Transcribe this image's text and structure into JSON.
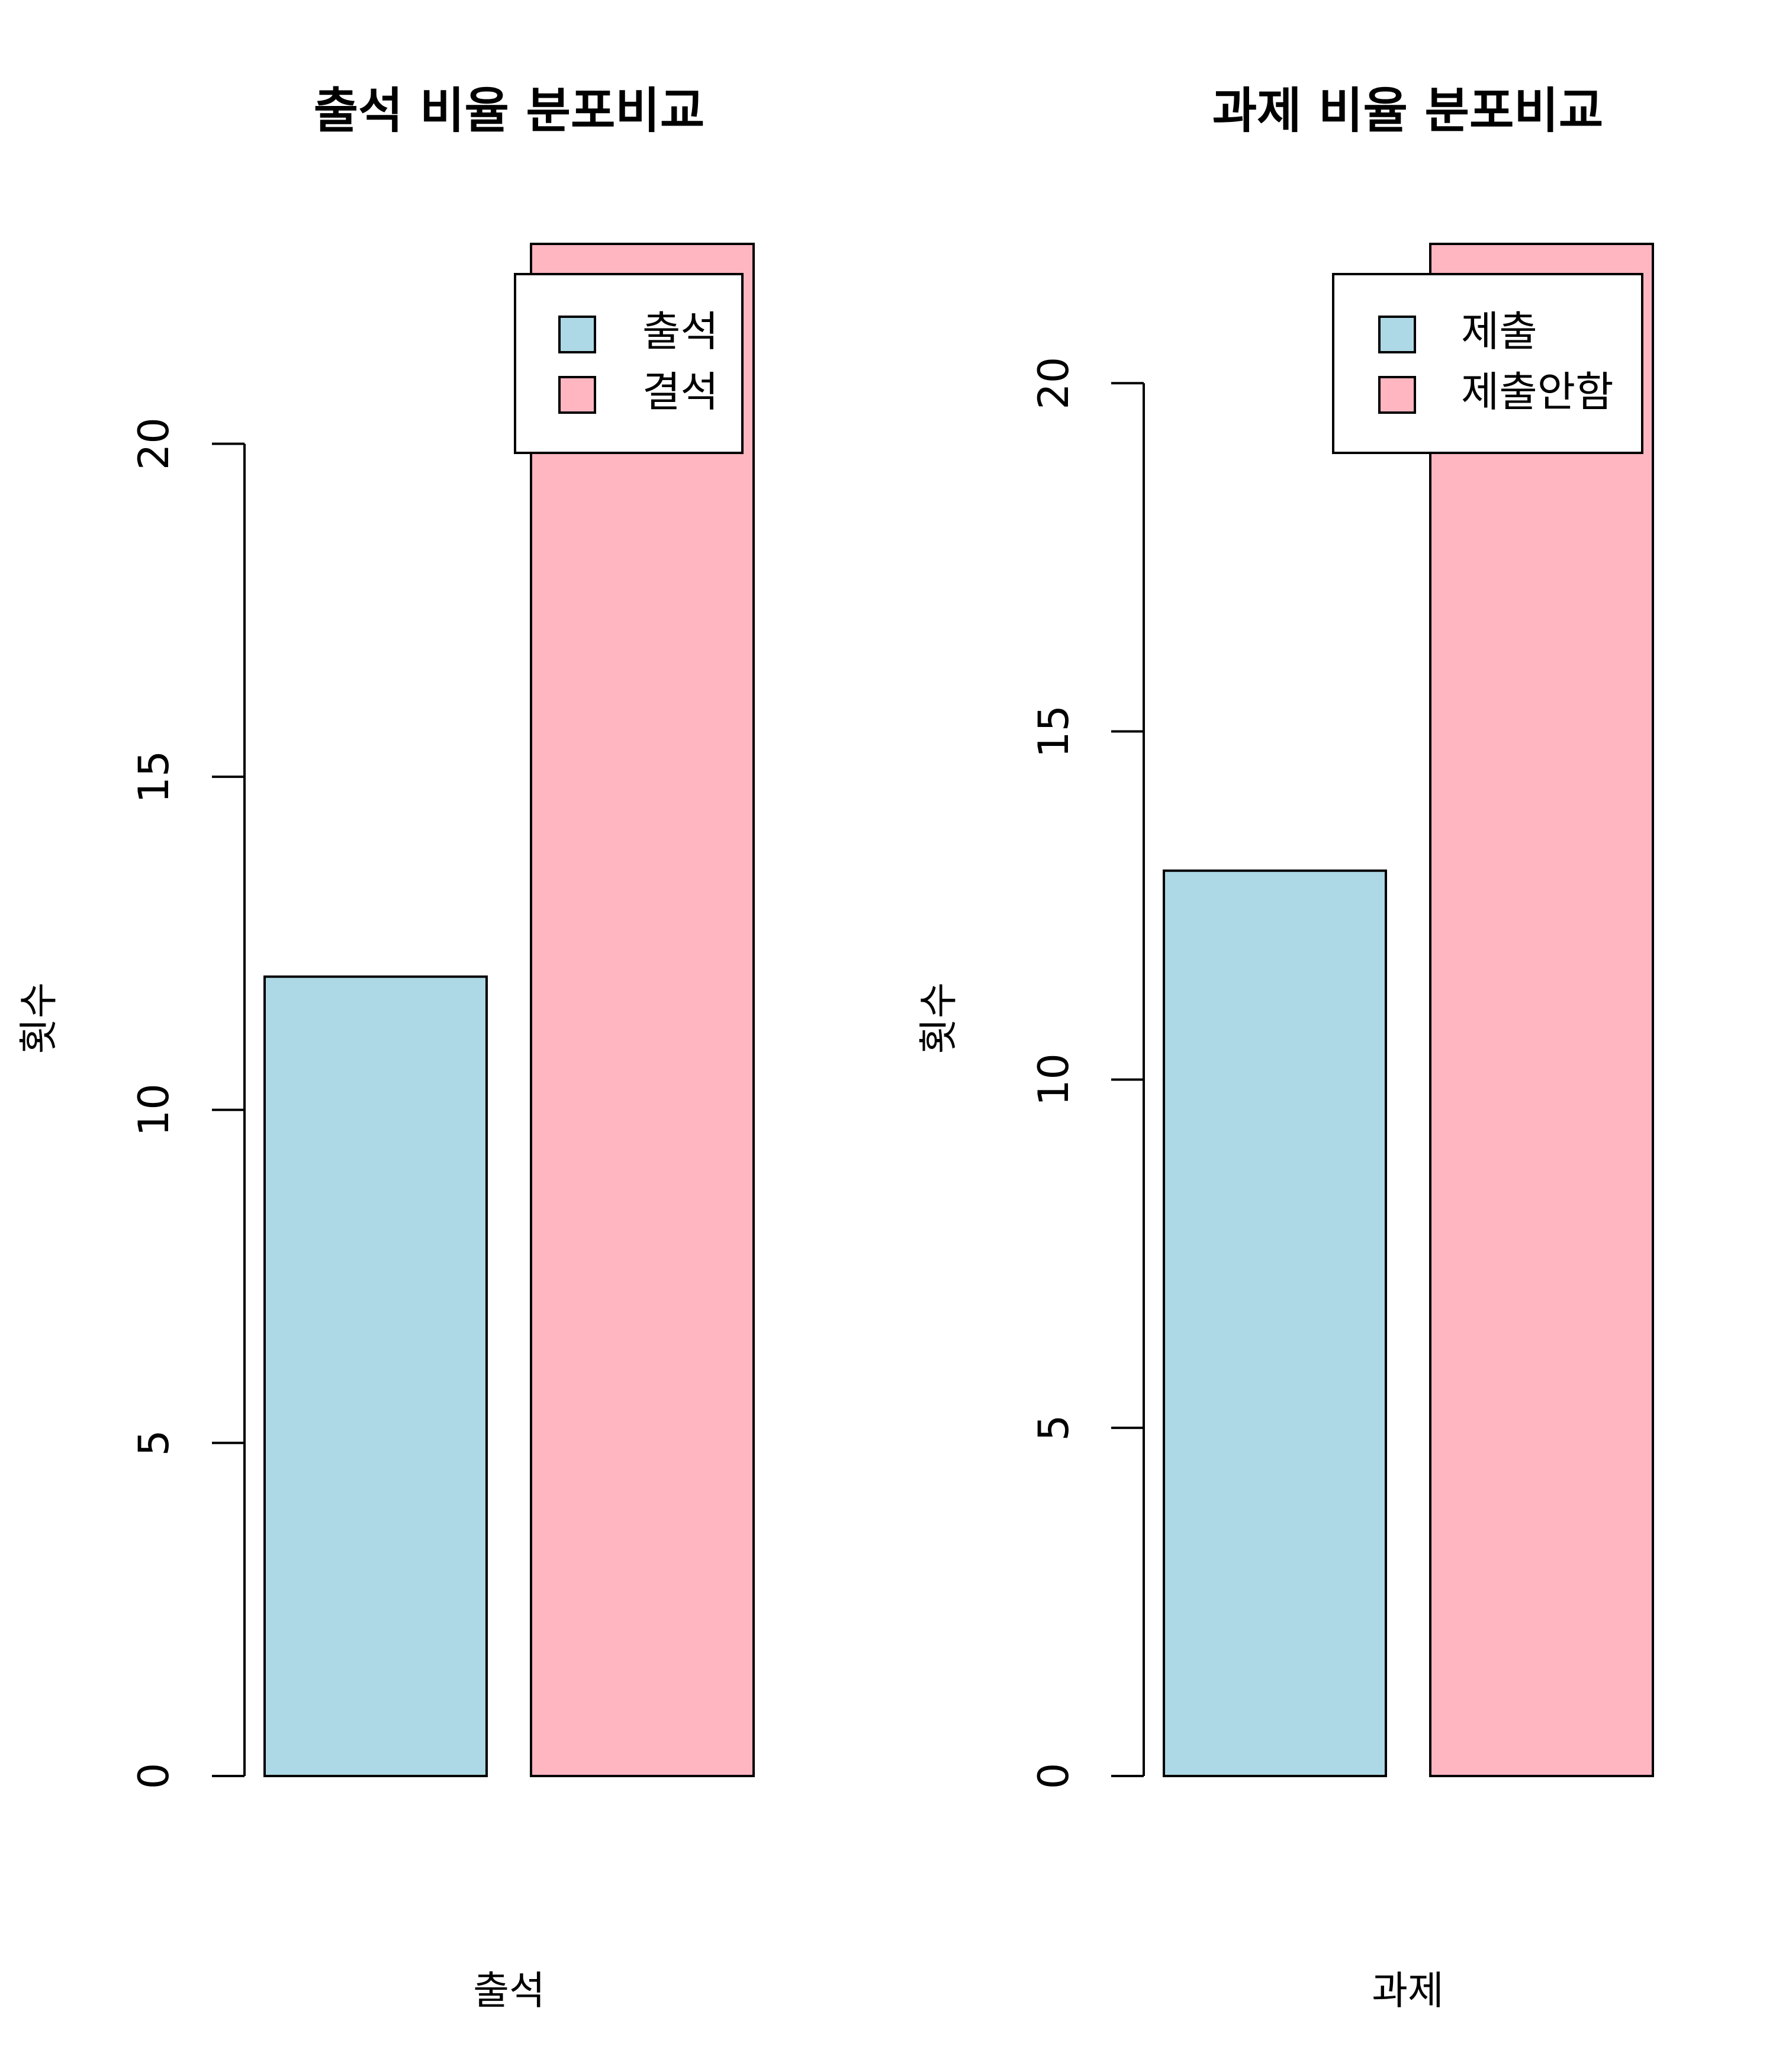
{
  "chart_data": [
    {
      "type": "bar",
      "title": "출석 비율 분포비교",
      "xlabel": "출석",
      "ylabel": "횟수",
      "categories": [
        "출석",
        "결석"
      ],
      "values": [
        12,
        23
      ],
      "colors": [
        "#ADD8E6",
        "#FFB6C1"
      ],
      "ylim": [
        0,
        23
      ],
      "yticks": [
        0,
        5,
        10,
        15,
        20
      ],
      "legend": {
        "position": "top-right",
        "entries": [
          "출석",
          "결석"
        ]
      },
      "grid": false
    },
    {
      "type": "bar",
      "title": "과제 비율 분포비교",
      "xlabel": "과제",
      "ylabel": "횟수",
      "categories": [
        "제출",
        "제출안함"
      ],
      "values": [
        13,
        22
      ],
      "colors": [
        "#ADD8E6",
        "#FFB6C1"
      ],
      "ylim": [
        0,
        22
      ],
      "yticks": [
        0,
        5,
        10,
        15,
        20
      ],
      "legend": {
        "position": "top-right",
        "entries": [
          "제출",
          "제출안함"
        ]
      },
      "grid": false
    }
  ]
}
